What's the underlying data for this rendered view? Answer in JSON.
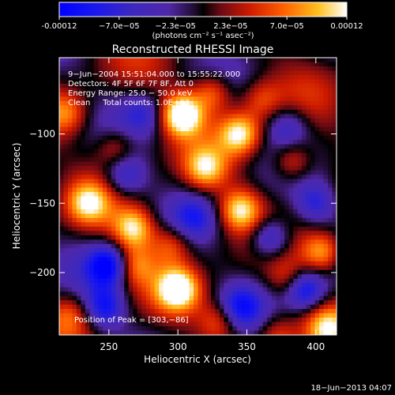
{
  "chart_data": {
    "type": "heatmap",
    "title": "Reconstructed RHESSI Image",
    "xlabel": "Heliocentric X (arcsec)",
    "ylabel": "Heliocentric Y (arcsec)",
    "xlim": [
      214,
      415
    ],
    "ylim": [
      -245,
      -45
    ],
    "x_ticks": [
      {
        "value": 250,
        "label": "250"
      },
      {
        "value": 300,
        "label": "300"
      },
      {
        "value": 350,
        "label": "350"
      },
      {
        "value": 400,
        "label": "400"
      }
    ],
    "y_ticks": [
      {
        "value": -100,
        "label": "−100"
      },
      {
        "value": -150,
        "label": "−150"
      },
      {
        "value": -200,
        "label": "−200"
      }
    ],
    "colorbar": {
      "min": -0.00012,
      "max": 0.00012,
      "tick_values": [
        -0.00012,
        -7e-05,
        -2.3e-05,
        2.3e-05,
        7e-05,
        0.00012
      ],
      "tick_labels": [
        "-0.00012",
        "−7.0e−05",
        "−2.3e−05",
        "2.3e−05",
        "7.0e−05",
        "0.00012"
      ],
      "unit_label": "(photons cm⁻² s⁻¹ asec⁻²)"
    },
    "annotations": [
      "9−Jun−2004 15:51:04.000 to 15:55:22.000",
      "Detectors: 4F 5F 6F 7F 8F, Att 0",
      "Energy Range: 25.0 − 50.0 keV",
      "Clean     Total counts: 1.0E+03",
      "Position of Peak = [303,−86]"
    ],
    "peak": {
      "x": 303,
      "y": -86
    },
    "hot_spots": [
      {
        "x": 303,
        "y": -86,
        "v": 1.25
      },
      {
        "x": 345,
        "y": -100,
        "v": 0.95
      },
      {
        "x": 325,
        "y": -70,
        "v": 0.7
      },
      {
        "x": 235,
        "y": -150,
        "v": 0.75
      },
      {
        "x": 268,
        "y": -168,
        "v": 0.9
      },
      {
        "x": 320,
        "y": -125,
        "v": 0.75
      },
      {
        "x": 345,
        "y": -155,
        "v": 0.9
      },
      {
        "x": 383,
        "y": -120,
        "v": 0.65
      },
      {
        "x": 295,
        "y": -180,
        "v": 0.55
      },
      {
        "x": 300,
        "y": -212,
        "v": 1.05
      },
      {
        "x": 268,
        "y": -195,
        "v": 0.6
      },
      {
        "x": 405,
        "y": -185,
        "v": 0.8
      },
      {
        "x": 220,
        "y": -85,
        "v": 0.55
      },
      {
        "x": 408,
        "y": -240,
        "v": 0.7
      },
      {
        "x": 330,
        "y": -235,
        "v": 0.55
      },
      {
        "x": 380,
        "y": -205,
        "v": 0.45
      },
      {
        "x": 255,
        "y": -110,
        "v": 0.5
      },
      {
        "x": 360,
        "y": -75,
        "v": 0.45
      },
      {
        "x": 222,
        "y": -230,
        "v": 0.45
      },
      {
        "x": 372,
        "y": -245,
        "v": 0.5
      }
    ],
    "cold_spots": [
      {
        "x": 250,
        "y": -195,
        "v": -1.0
      },
      {
        "x": 367,
        "y": -175,
        "v": -0.85
      },
      {
        "x": 392,
        "y": -212,
        "v": -0.95
      },
      {
        "x": 247,
        "y": -225,
        "v": -0.75
      },
      {
        "x": 262,
        "y": -130,
        "v": -0.6
      },
      {
        "x": 345,
        "y": -225,
        "v": -0.65
      },
      {
        "x": 380,
        "y": -95,
        "v": -0.5
      },
      {
        "x": 275,
        "y": -85,
        "v": -0.45
      },
      {
        "x": 312,
        "y": -160,
        "v": -0.45
      },
      {
        "x": 400,
        "y": -150,
        "v": -0.55
      }
    ]
  },
  "footer": {
    "timestamp": "18−Jun−2013 04:07"
  }
}
